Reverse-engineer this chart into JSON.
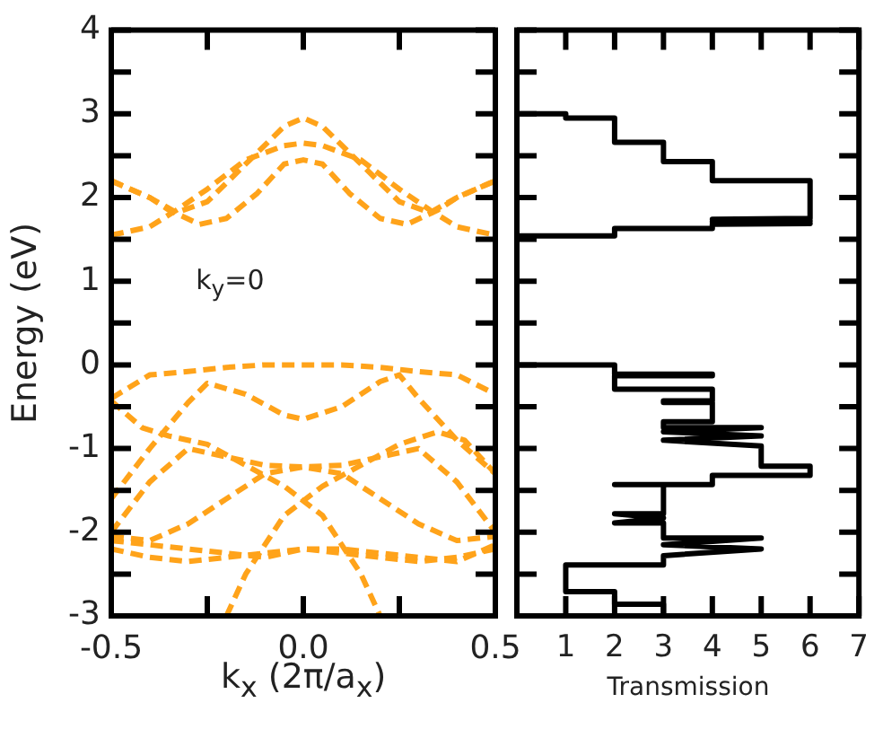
{
  "chart_data": [
    {
      "type": "line",
      "xlabel": "k$_{x}$ (2π/a$_{x}$)",
      "ylabel": "Energy (eV)",
      "annotations": [
        "k$_{y}$=0"
      ],
      "line_style": "dashed",
      "marker": "none",
      "grid": false,
      "legend": false,
      "xlim": [
        -0.5,
        0.5
      ],
      "xticks": [
        -0.5,
        {
          "value": -0.25,
          "label": null
        },
        {
          "value": 0,
          "label": "0.0"
        },
        {
          "value": 0.25,
          "label": null
        },
        0.5
      ],
      "ylim": [
        -3,
        4
      ],
      "yticks": [
        -3,
        {
          "value": -2.5,
          "label": null
        },
        -2,
        {
          "value": -1.5,
          "label": null
        },
        -1,
        {
          "value": -0.5,
          "label": null
        },
        0,
        {
          "value": 0.5,
          "label": null
        },
        1,
        {
          "value": 1.5,
          "label": null
        },
        2,
        {
          "value": 2.5,
          "label": null
        },
        3,
        {
          "value": 3.5,
          "label": null
        },
        4
      ],
      "series": [
        {
          "color": "#ffa31a",
          "x": [
            -0.5,
            -0.4,
            -0.33,
            -0.25,
            -0.15,
            -0.05,
            0,
            0.05,
            0.15,
            0.25,
            0.33,
            0.4,
            0.5
          ],
          "values": [
            2.2,
            2.0,
            1.82,
            1.95,
            2.4,
            2.85,
            2.95,
            2.85,
            2.4,
            1.95,
            1.82,
            2.0,
            2.2
          ]
        },
        {
          "color": "#ffa31a",
          "x": [
            -0.5,
            -0.4,
            -0.33,
            -0.25,
            -0.15,
            -0.05,
            0,
            0.05,
            0.15,
            0.25,
            0.33,
            0.4,
            0.5
          ],
          "values": [
            1.55,
            1.65,
            1.85,
            2.1,
            2.45,
            2.62,
            2.65,
            2.62,
            2.45,
            2.1,
            1.85,
            1.65,
            1.55
          ]
        },
        {
          "color": "#ffa31a",
          "x": [
            -0.5,
            -0.4,
            -0.35,
            -0.27,
            -0.2,
            -0.12,
            -0.05,
            0,
            0.05,
            0.12,
            0.2,
            0.27,
            0.35,
            0.4,
            0.5
          ],
          "values": [
            2.2,
            2.0,
            1.85,
            1.68,
            1.75,
            2.05,
            2.4,
            2.45,
            2.4,
            2.05,
            1.75,
            1.68,
            1.85,
            2.0,
            2.2
          ]
        },
        {
          "color": "#ffa31a",
          "x": [
            -0.5,
            -0.4,
            -0.3,
            -0.2,
            -0.1,
            0,
            0.1,
            0.2,
            0.3,
            0.4,
            0.5
          ],
          "values": [
            -0.4,
            -0.12,
            -0.08,
            -0.03,
            0,
            0,
            0,
            -0.03,
            -0.08,
            -0.12,
            -0.35
          ]
        },
        {
          "color": "#ffa31a",
          "x": [
            -0.5,
            -0.4,
            -0.3,
            -0.25,
            -0.15,
            -0.05,
            0,
            0.1,
            0.2,
            0.25,
            0.3,
            0.4,
            0.5
          ],
          "values": [
            -1.6,
            -1.0,
            -0.45,
            -0.22,
            -0.35,
            -0.6,
            -0.65,
            -0.5,
            -0.2,
            -0.12,
            -0.4,
            -0.9,
            -1.3
          ]
        },
        {
          "color": "#ffa31a",
          "x": [
            -0.5,
            -0.42,
            -0.35,
            -0.25,
            -0.15,
            -0.05,
            0.05,
            0.15,
            0.2
          ],
          "values": [
            -0.43,
            -0.75,
            -0.85,
            -0.95,
            -1.2,
            -1.45,
            -1.8,
            -2.5,
            -3.0
          ]
        },
        {
          "color": "#ffa31a",
          "x": [
            -0.2,
            -0.15,
            -0.05,
            0.05,
            0.15,
            0.25,
            0.35,
            0.42,
            0.5
          ],
          "values": [
            -3.0,
            -2.5,
            -1.8,
            -1.45,
            -1.2,
            -0.95,
            -0.8,
            -0.9,
            -1.3
          ]
        },
        {
          "color": "#ffa31a",
          "x": [
            -0.5,
            -0.4,
            -0.3,
            -0.2,
            -0.1,
            0,
            0.1,
            0.2,
            0.3,
            0.4,
            0.5
          ],
          "values": [
            -2.0,
            -1.4,
            -1.0,
            -1.1,
            -1.2,
            -1.22,
            -1.3,
            -1.6,
            -1.9,
            -2.1,
            -2.05
          ]
        },
        {
          "color": "#ffa31a",
          "x": [
            -0.5,
            -0.4,
            -0.3,
            -0.2,
            -0.1,
            0,
            0.1,
            0.2,
            0.3,
            0.4,
            0.5
          ],
          "values": [
            -2.05,
            -2.1,
            -1.9,
            -1.6,
            -1.3,
            -1.22,
            -1.2,
            -1.1,
            -1.0,
            -1.4,
            -2.0
          ]
        },
        {
          "color": "#ffa31a",
          "x": [
            -0.5,
            -0.4,
            -0.3,
            -0.2,
            -0.1,
            0,
            0.1,
            0.2,
            0.3,
            0.4,
            0.5
          ],
          "values": [
            -2.1,
            -2.15,
            -2.2,
            -2.25,
            -2.3,
            -2.2,
            -2.2,
            -2.25,
            -2.3,
            -2.35,
            -2.15
          ]
        },
        {
          "color": "#ffa31a",
          "x": [
            -0.5,
            -0.4,
            -0.3,
            -0.2,
            -0.1,
            0,
            0.1,
            0.2,
            0.3,
            0.4,
            0.5
          ],
          "values": [
            -2.2,
            -2.3,
            -2.35,
            -2.3,
            -2.25,
            -2.2,
            -2.25,
            -2.3,
            -2.35,
            -2.3,
            -2.2
          ]
        }
      ]
    },
    {
      "type": "line",
      "xlabel": "Transmission",
      "line_style": "solid",
      "marker": "none",
      "grid": false,
      "legend": false,
      "tick_labels": "x",
      "xlim": [
        0,
        7
      ],
      "xticks": [
        {
          "value": 0,
          "label": null
        },
        1,
        2,
        3,
        4,
        5,
        6,
        7
      ],
      "ylim": [
        -3,
        4
      ],
      "yticks": [
        -3,
        -2.5,
        -2,
        -1.5,
        -1,
        -0.5,
        0,
        0.5,
        1,
        1.5,
        2,
        2.5,
        3,
        3.5,
        4
      ],
      "series": [
        {
          "color": "#000000",
          "x": [
            0,
            1,
            1,
            2,
            2,
            3,
            3,
            4,
            4,
            6,
            6,
            4,
            6,
            4,
            6,
            4,
            4,
            2,
            2,
            0
          ],
          "values": [
            3.0,
            3.0,
            2.95,
            2.95,
            2.66,
            2.66,
            2.43,
            2.43,
            2.2,
            2.2,
            1.75,
            1.74,
            1.72,
            1.71,
            1.69,
            1.68,
            1.63,
            1.63,
            1.54,
            1.54
          ]
        },
        {
          "color": "#000000",
          "x": [
            0,
            2,
            2,
            4,
            4,
            2,
            2,
            4,
            4,
            3,
            3,
            4,
            4,
            3,
            3,
            5,
            3,
            5,
            3,
            5,
            5,
            6,
            6,
            4,
            4,
            2,
            3,
            3,
            2,
            3,
            2,
            3,
            3,
            5,
            3,
            5,
            3,
            3,
            1,
            1,
            2,
            2,
            3,
            3
          ],
          "values": [
            0,
            0,
            -0.11,
            -0.11,
            -0.13,
            -0.13,
            -0.29,
            -0.29,
            -0.43,
            -0.43,
            -0.45,
            -0.45,
            -0.68,
            -0.68,
            -0.75,
            -0.75,
            -0.8,
            -0.85,
            -0.9,
            -0.97,
            -1.21,
            -1.21,
            -1.32,
            -1.32,
            -1.43,
            -1.43,
            -1.43,
            -1.78,
            -1.78,
            -1.83,
            -1.89,
            -1.89,
            -2.07,
            -2.07,
            -2.15,
            -2.2,
            -2.28,
            -2.39,
            -2.39,
            -2.71,
            -2.71,
            -2.86,
            -2.86,
            -3.0
          ]
        }
      ]
    }
  ]
}
